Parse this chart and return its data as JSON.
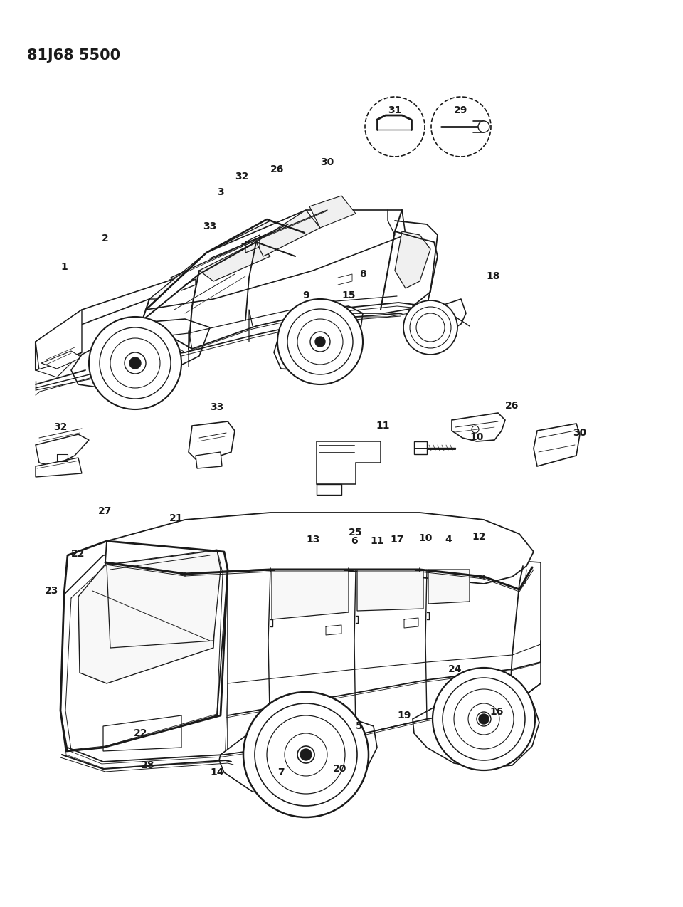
{
  "title": "81J68 5500",
  "bg_color": "#ffffff",
  "fig_width": 9.6,
  "fig_height": 12.74,
  "dpi": 100,
  "line_color": "#1a1a1a",
  "label_fontsize": 10,
  "title_fontsize": 15
}
